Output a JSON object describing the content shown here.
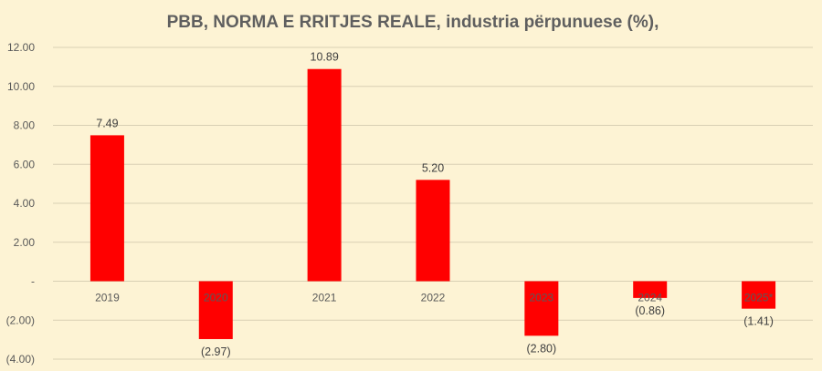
{
  "chart_data": {
    "type": "bar",
    "title": "PBB, NORMA E RRITJES REALE, industria përpunuese (%),",
    "categories": [
      "2019",
      "2020",
      "2021",
      "2022",
      "2023",
      "2024",
      "2025*"
    ],
    "values": [
      7.49,
      -2.97,
      10.89,
      5.2,
      -2.8,
      -0.86,
      -1.41
    ],
    "data_labels": [
      "7.49",
      "(2.97)",
      "10.89",
      "5.20",
      "(2.80)",
      "(0.86)",
      "(1.41)"
    ],
    "y_ticks": [
      -4,
      -2,
      0,
      2,
      4,
      6,
      8,
      10,
      12
    ],
    "y_tick_labels": [
      "(4.00)",
      "(2.00)",
      "-",
      "2.00",
      "4.00",
      "6.00",
      "8.00",
      "10.00",
      "12.00"
    ],
    "ylim": [
      -4,
      12
    ],
    "grid": true,
    "legend": "none",
    "bar_color": "#ff0000",
    "background_color": "#fdf3d4"
  }
}
